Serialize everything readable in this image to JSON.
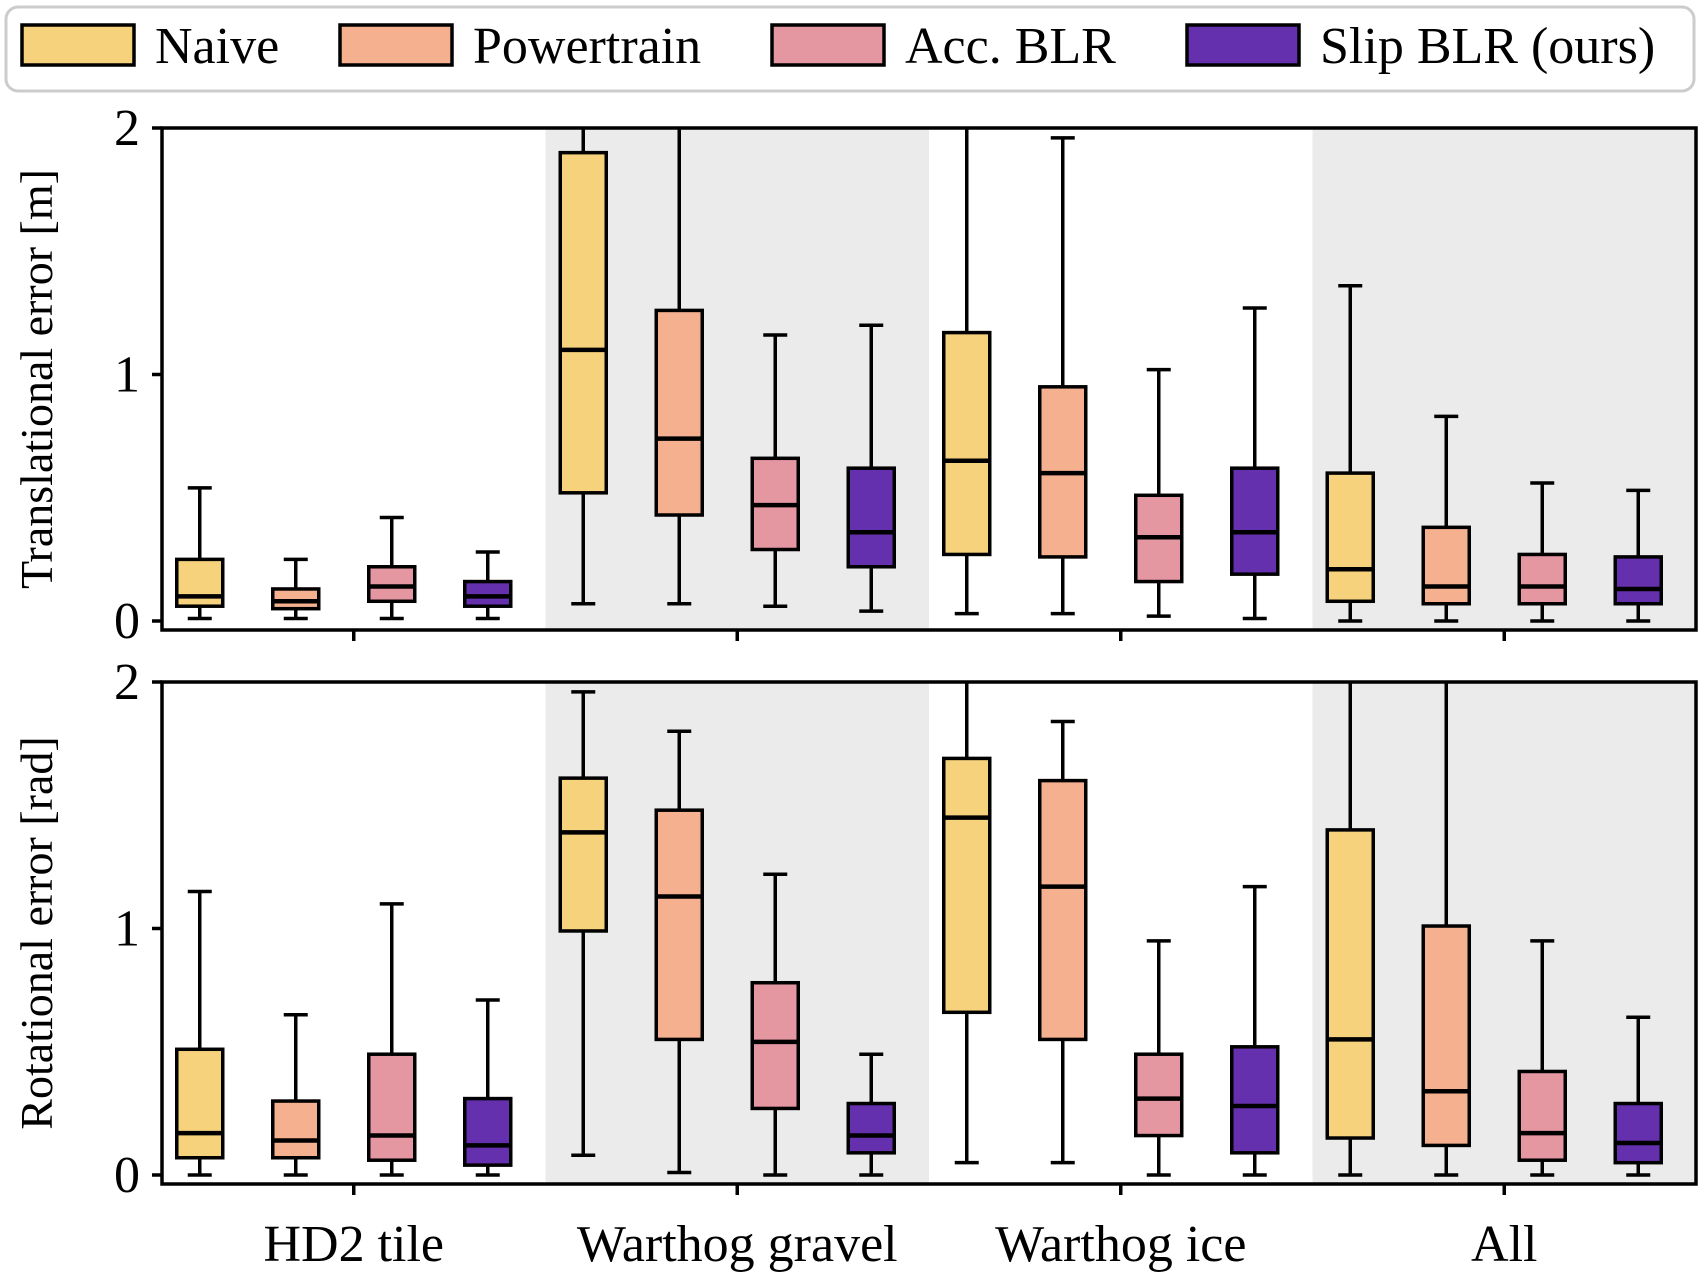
{
  "chart_data": {
    "type": "box",
    "categories": [
      "HD2 tile",
      "Warthog gravel",
      "Warthog ice",
      "All"
    ],
    "legend": {
      "placement": "top",
      "entries": [
        {
          "name": "Naive",
          "color": "#f7d27c"
        },
        {
          "name": "Powertrain",
          "color": "#f5b08f"
        },
        {
          "name": "Acc. BLR",
          "color": "#e597a1"
        },
        {
          "name": "Slip BLR (ours)",
          "color": "#6530ad"
        }
      ]
    },
    "grid": false,
    "shaded_categories": [
      "Warthog gravel",
      "All"
    ],
    "panels": [
      {
        "ylabel": "Translational error [m]",
        "ylim": [
          0,
          2
        ],
        "yticks": [
          0,
          1,
          2
        ],
        "series": [
          {
            "name": "Naive",
            "boxes": [
              {
                "whislo": 0.01,
                "q1": 0.06,
                "med": 0.1,
                "q3": 0.25,
                "whishi": 0.54
              },
              {
                "whislo": 0.07,
                "q1": 0.52,
                "med": 1.1,
                "q3": 1.9,
                "whishi": 2.0
              },
              {
                "whislo": 0.03,
                "q1": 0.27,
                "med": 0.65,
                "q3": 1.17,
                "whishi": 2.0
              },
              {
                "whislo": 0.0,
                "q1": 0.08,
                "med": 0.21,
                "q3": 0.6,
                "whishi": 1.36
              }
            ]
          },
          {
            "name": "Powertrain",
            "boxes": [
              {
                "whislo": 0.01,
                "q1": 0.05,
                "med": 0.08,
                "q3": 0.13,
                "whishi": 0.25
              },
              {
                "whislo": 0.07,
                "q1": 0.43,
                "med": 0.74,
                "q3": 1.26,
                "whishi": 2.0
              },
              {
                "whislo": 0.03,
                "q1": 0.26,
                "med": 0.6,
                "q3": 0.95,
                "whishi": 1.96
              },
              {
                "whislo": 0.0,
                "q1": 0.07,
                "med": 0.14,
                "q3": 0.38,
                "whishi": 0.83
              }
            ]
          },
          {
            "name": "Acc. BLR",
            "boxes": [
              {
                "whislo": 0.01,
                "q1": 0.08,
                "med": 0.14,
                "q3": 0.22,
                "whishi": 0.42
              },
              {
                "whislo": 0.06,
                "q1": 0.29,
                "med": 0.47,
                "q3": 0.66,
                "whishi": 1.16
              },
              {
                "whislo": 0.02,
                "q1": 0.16,
                "med": 0.34,
                "q3": 0.51,
                "whishi": 1.02
              },
              {
                "whislo": 0.0,
                "q1": 0.07,
                "med": 0.14,
                "q3": 0.27,
                "whishi": 0.56
              }
            ]
          },
          {
            "name": "Slip BLR (ours)",
            "boxes": [
              {
                "whislo": 0.01,
                "q1": 0.06,
                "med": 0.1,
                "q3": 0.16,
                "whishi": 0.28
              },
              {
                "whislo": 0.04,
                "q1": 0.22,
                "med": 0.36,
                "q3": 0.62,
                "whishi": 1.2
              },
              {
                "whislo": 0.01,
                "q1": 0.19,
                "med": 0.36,
                "q3": 0.62,
                "whishi": 1.27
              },
              {
                "whislo": 0.0,
                "q1": 0.07,
                "med": 0.13,
                "q3": 0.26,
                "whishi": 0.53
              }
            ]
          }
        ]
      },
      {
        "ylabel": "Rotational error [rad]",
        "ylim": [
          0,
          2
        ],
        "yticks": [
          0,
          1,
          2
        ],
        "series": [
          {
            "name": "Naive",
            "boxes": [
              {
                "whislo": 0.0,
                "q1": 0.07,
                "med": 0.17,
                "q3": 0.51,
                "whishi": 1.15
              },
              {
                "whislo": 0.08,
                "q1": 0.99,
                "med": 1.39,
                "q3": 1.61,
                "whishi": 1.96
              },
              {
                "whislo": 0.05,
                "q1": 0.66,
                "med": 1.45,
                "q3": 1.69,
                "whishi": 2.0
              },
              {
                "whislo": 0.0,
                "q1": 0.15,
                "med": 0.55,
                "q3": 1.4,
                "whishi": 2.0
              }
            ]
          },
          {
            "name": "Powertrain",
            "boxes": [
              {
                "whislo": 0.0,
                "q1": 0.07,
                "med": 0.14,
                "q3": 0.3,
                "whishi": 0.65
              },
              {
                "whislo": 0.01,
                "q1": 0.55,
                "med": 1.13,
                "q3": 1.48,
                "whishi": 1.8
              },
              {
                "whislo": 0.05,
                "q1": 0.55,
                "med": 1.17,
                "q3": 1.6,
                "whishi": 1.84
              },
              {
                "whislo": 0.0,
                "q1": 0.12,
                "med": 0.34,
                "q3": 1.01,
                "whishi": 2.0
              }
            ]
          },
          {
            "name": "Acc. BLR",
            "boxes": [
              {
                "whislo": 0.0,
                "q1": 0.06,
                "med": 0.16,
                "q3": 0.49,
                "whishi": 1.1
              },
              {
                "whislo": 0.0,
                "q1": 0.27,
                "med": 0.54,
                "q3": 0.78,
                "whishi": 1.22
              },
              {
                "whislo": 0.0,
                "q1": 0.16,
                "med": 0.31,
                "q3": 0.49,
                "whishi": 0.95
              },
              {
                "whislo": 0.0,
                "q1": 0.06,
                "med": 0.17,
                "q3": 0.42,
                "whishi": 0.95
              }
            ]
          },
          {
            "name": "Slip BLR (ours)",
            "boxes": [
              {
                "whislo": 0.0,
                "q1": 0.04,
                "med": 0.12,
                "q3": 0.31,
                "whishi": 0.71
              },
              {
                "whislo": 0.0,
                "q1": 0.09,
                "med": 0.16,
                "q3": 0.29,
                "whishi": 0.49
              },
              {
                "whislo": 0.0,
                "q1": 0.09,
                "med": 0.28,
                "q3": 0.52,
                "whishi": 1.17
              },
              {
                "whislo": 0.0,
                "q1": 0.05,
                "med": 0.13,
                "q3": 0.29,
                "whishi": 0.64
              }
            ]
          }
        ]
      }
    ]
  }
}
